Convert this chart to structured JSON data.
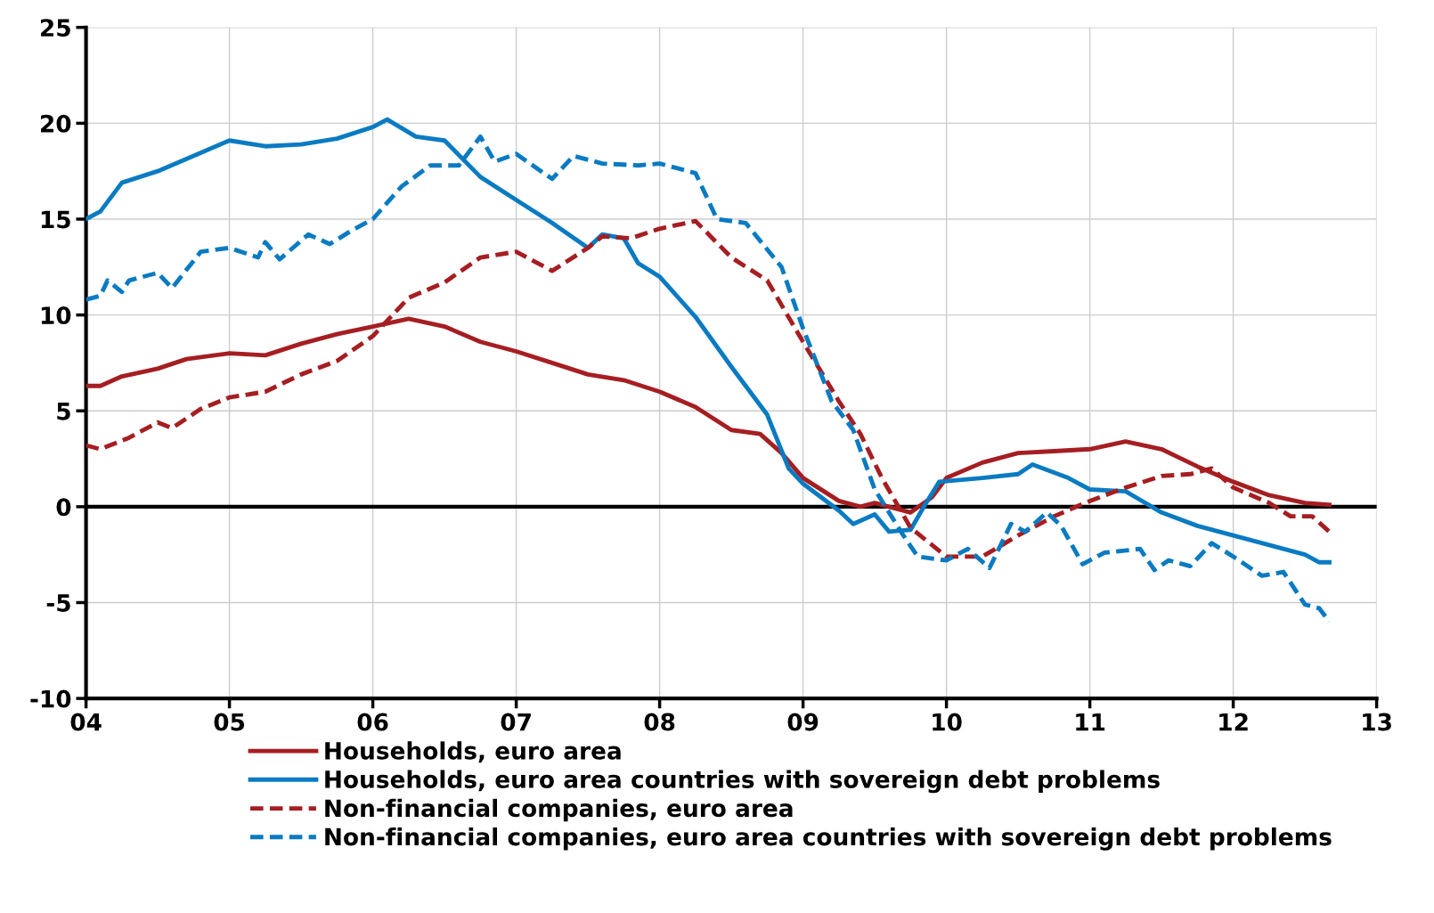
{
  "chart_data": {
    "type": "line",
    "xlim": [
      2004,
      2013
    ],
    "ylim": [
      -10,
      25
    ],
    "xticks": [
      {
        "value": 2004,
        "label": "04"
      },
      {
        "value": 2005,
        "label": "05"
      },
      {
        "value": 2006,
        "label": "06"
      },
      {
        "value": 2007,
        "label": "07"
      },
      {
        "value": 2008,
        "label": "08"
      },
      {
        "value": 2009,
        "label": "09"
      },
      {
        "value": 2010,
        "label": "10"
      },
      {
        "value": 2011,
        "label": "11"
      },
      {
        "value": 2012,
        "label": "12"
      },
      {
        "value": 2013,
        "label": "13"
      }
    ],
    "yticks": [
      -10,
      -5,
      0,
      5,
      10,
      15,
      20,
      25
    ],
    "grid": true,
    "legend": "bottom",
    "ref_lines": [
      {
        "axis": "y",
        "value": 0,
        "color": "#000000"
      }
    ],
    "series": [
      {
        "name": "Households, euro area",
        "color": "#a51e22",
        "line_style": "solid",
        "x": [
          2004.0,
          2004.1,
          2004.25,
          2004.5,
          2004.7,
          2005.0,
          2005.25,
          2005.5,
          2005.75,
          2006.0,
          2006.25,
          2006.5,
          2006.75,
          2007.0,
          2007.25,
          2007.5,
          2007.75,
          2008.0,
          2008.25,
          2008.5,
          2008.7,
          2008.85,
          2009.0,
          2009.25,
          2009.4,
          2009.5,
          2009.75,
          2009.9,
          2010.0,
          2010.25,
          2010.5,
          2010.75,
          2011.0,
          2011.25,
          2011.5,
          2011.75,
          2012.0,
          2012.25,
          2012.5,
          2012.67
        ],
        "values": [
          6.3,
          6.3,
          6.8,
          7.2,
          7.7,
          8.0,
          7.9,
          8.5,
          9.0,
          9.4,
          9.8,
          9.4,
          8.6,
          8.1,
          7.5,
          6.9,
          6.6,
          6.0,
          5.2,
          4.0,
          3.8,
          2.8,
          1.5,
          0.3,
          0.0,
          0.2,
          -0.3,
          0.5,
          1.5,
          2.3,
          2.8,
          2.9,
          3.0,
          3.4,
          3.0,
          2.1,
          1.3,
          0.6,
          0.2,
          0.1
        ]
      },
      {
        "name": "Households, euro area countries with sovereign debt problems",
        "color": "#0a7bc2",
        "line_style": "solid",
        "x": [
          2004.0,
          2004.1,
          2004.25,
          2004.5,
          2004.75,
          2005.0,
          2005.25,
          2005.5,
          2005.75,
          2006.0,
          2006.1,
          2006.3,
          2006.5,
          2006.75,
          2007.0,
          2007.25,
          2007.5,
          2007.6,
          2007.75,
          2007.85,
          2008.0,
          2008.25,
          2008.5,
          2008.75,
          2008.9,
          2009.0,
          2009.25,
          2009.35,
          2009.5,
          2009.6,
          2009.75,
          2009.85,
          2009.95,
          2010.25,
          2010.5,
          2010.6,
          2010.85,
          2011.0,
          2011.25,
          2011.5,
          2011.75,
          2012.0,
          2012.25,
          2012.5,
          2012.6,
          2012.67
        ],
        "values": [
          15.0,
          15.4,
          16.9,
          17.5,
          18.3,
          19.1,
          18.8,
          18.9,
          19.2,
          19.8,
          20.2,
          19.3,
          19.1,
          17.2,
          16.0,
          14.8,
          13.5,
          14.2,
          14.0,
          12.7,
          12.0,
          9.9,
          7.3,
          4.8,
          2.0,
          1.2,
          -0.2,
          -0.9,
          -0.4,
          -1.3,
          -1.2,
          0.1,
          1.3,
          1.5,
          1.7,
          2.2,
          1.5,
          0.9,
          0.8,
          -0.3,
          -1.0,
          -1.5,
          -2.0,
          -2.5,
          -2.9,
          -2.9
        ]
      },
      {
        "name": "Non-financial companies, euro area",
        "color": "#a51e22",
        "line_style": "dashed",
        "x": [
          2004.0,
          2004.1,
          2004.3,
          2004.5,
          2004.6,
          2004.8,
          2005.0,
          2005.25,
          2005.5,
          2005.75,
          2006.0,
          2006.25,
          2006.5,
          2006.75,
          2007.0,
          2007.25,
          2007.5,
          2007.6,
          2007.8,
          2008.0,
          2008.25,
          2008.5,
          2008.75,
          2009.0,
          2009.25,
          2009.4,
          2009.55,
          2009.75,
          2010.0,
          2010.25,
          2010.5,
          2010.75,
          2011.0,
          2011.25,
          2011.5,
          2011.7,
          2011.85,
          2012.0,
          2012.25,
          2012.4,
          2012.55,
          2012.67
        ],
        "values": [
          3.2,
          3.0,
          3.6,
          4.4,
          4.1,
          5.1,
          5.7,
          6.0,
          6.9,
          7.6,
          8.9,
          10.9,
          11.7,
          13.0,
          13.3,
          12.3,
          13.5,
          14.1,
          14.0,
          14.5,
          14.9,
          13.0,
          11.8,
          8.6,
          5.5,
          3.8,
          1.5,
          -1.1,
          -2.6,
          -2.6,
          -1.5,
          -0.5,
          0.3,
          1.0,
          1.6,
          1.7,
          2.0,
          1.0,
          0.2,
          -0.5,
          -0.5,
          -1.3
        ]
      },
      {
        "name": "Non-financial companies, euro area countries with sovereign debt problems",
        "color": "#0a7bc2",
        "line_style": "dashed",
        "x": [
          2004.0,
          2004.1,
          2004.15,
          2004.25,
          2004.3,
          2004.5,
          2004.6,
          2004.8,
          2005.0,
          2005.2,
          2005.25,
          2005.35,
          2005.55,
          2005.7,
          2005.85,
          2006.0,
          2006.2,
          2006.4,
          2006.6,
          2006.75,
          2006.85,
          2007.0,
          2007.25,
          2007.4,
          2007.6,
          2007.85,
          2008.0,
          2008.25,
          2008.4,
          2008.6,
          2008.85,
          2009.0,
          2009.2,
          2009.35,
          2009.5,
          2009.7,
          2009.8,
          2010.0,
          2010.15,
          2010.3,
          2010.45,
          2010.55,
          2010.7,
          2010.8,
          2010.95,
          2011.1,
          2011.35,
          2011.45,
          2011.55,
          2011.7,
          2011.85,
          2012.0,
          2012.2,
          2012.35,
          2012.5,
          2012.6,
          2012.67
        ],
        "values": [
          10.8,
          11.0,
          11.8,
          11.2,
          11.8,
          12.2,
          11.4,
          13.3,
          13.5,
          13.0,
          13.8,
          12.9,
          14.2,
          13.7,
          14.4,
          15.0,
          16.7,
          17.8,
          17.8,
          19.3,
          18.0,
          18.4,
          17.1,
          18.3,
          17.9,
          17.8,
          17.9,
          17.4,
          15.0,
          14.8,
          12.5,
          9.3,
          5.5,
          4.0,
          0.9,
          -1.5,
          -2.6,
          -2.8,
          -2.2,
          -3.2,
          -0.9,
          -1.3,
          -0.3,
          -1.0,
          -3.0,
          -2.4,
          -2.2,
          -3.3,
          -2.8,
          -3.1,
          -1.9,
          -2.6,
          -3.6,
          -3.4,
          -5.1,
          -5.3,
          -6.0
        ]
      }
    ]
  }
}
